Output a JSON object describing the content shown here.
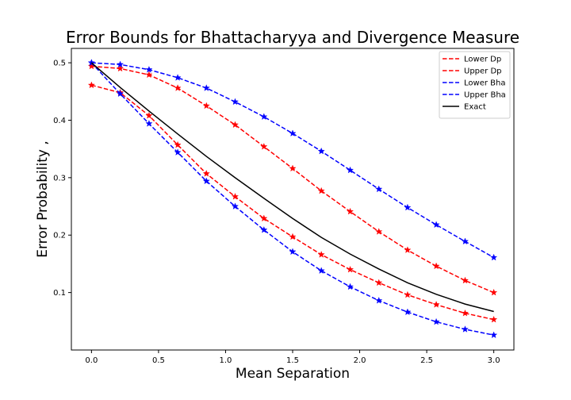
{
  "chart_data": {
    "type": "line",
    "title": "Error Bounds for Bhattacharyya and Divergence Measure",
    "xlabel": "Mean Separation",
    "ylabel": "Error Probability ,",
    "xlim": [
      -0.15,
      3.15
    ],
    "ylim": [
      0.0,
      0.525
    ],
    "xticks": [
      0.0,
      0.5,
      1.0,
      1.5,
      2.0,
      2.5,
      3.0
    ],
    "xtick_labels": [
      "0.0",
      "0.5",
      "1.0",
      "1.5",
      "2.0",
      "2.5",
      "3.0"
    ],
    "yticks": [
      0.1,
      0.2,
      0.3,
      0.4,
      0.5
    ],
    "ytick_labels": [
      "0.1",
      "0.2",
      "0.3",
      "0.4",
      "0.5"
    ],
    "grid": false,
    "legend_position": "top-right",
    "x": [
      0.0,
      0.214,
      0.429,
      0.643,
      0.857,
      1.071,
      1.286,
      1.5,
      1.714,
      1.929,
      2.143,
      2.357,
      2.571,
      2.786,
      3.0
    ],
    "series": [
      {
        "name": "Lower Dp",
        "color": "#ff0000",
        "style": "dashed",
        "marker": "star",
        "values": [
          0.461,
          0.448,
          0.408,
          0.357,
          0.307,
          0.267,
          0.229,
          0.197,
          0.166,
          0.14,
          0.117,
          0.096,
          0.079,
          0.064,
          0.053
        ]
      },
      {
        "name": "Upper Dp",
        "color": "#ff0000",
        "style": "dashed",
        "marker": "star",
        "values": [
          0.494,
          0.49,
          0.479,
          0.456,
          0.425,
          0.392,
          0.354,
          0.316,
          0.277,
          0.241,
          0.206,
          0.174,
          0.146,
          0.121,
          0.1
        ]
      },
      {
        "name": "Lower Bha",
        "color": "#0000ff",
        "style": "dashed",
        "marker": "star",
        "values": [
          0.5,
          0.446,
          0.394,
          0.344,
          0.294,
          0.25,
          0.209,
          0.171,
          0.138,
          0.11,
          0.086,
          0.066,
          0.049,
          0.036,
          0.026
        ]
      },
      {
        "name": "Upper Bha",
        "color": "#0000ff",
        "style": "dashed",
        "marker": "star",
        "values": [
          0.5,
          0.497,
          0.488,
          0.474,
          0.456,
          0.432,
          0.406,
          0.377,
          0.346,
          0.313,
          0.28,
          0.248,
          0.218,
          0.189,
          0.161
        ]
      },
      {
        "name": "Exact",
        "color": "#000000",
        "style": "solid",
        "marker": "none",
        "values": [
          0.5,
          0.457,
          0.416,
          0.376,
          0.337,
          0.3,
          0.264,
          0.229,
          0.196,
          0.167,
          0.141,
          0.117,
          0.097,
          0.08,
          0.067
        ]
      }
    ]
  }
}
